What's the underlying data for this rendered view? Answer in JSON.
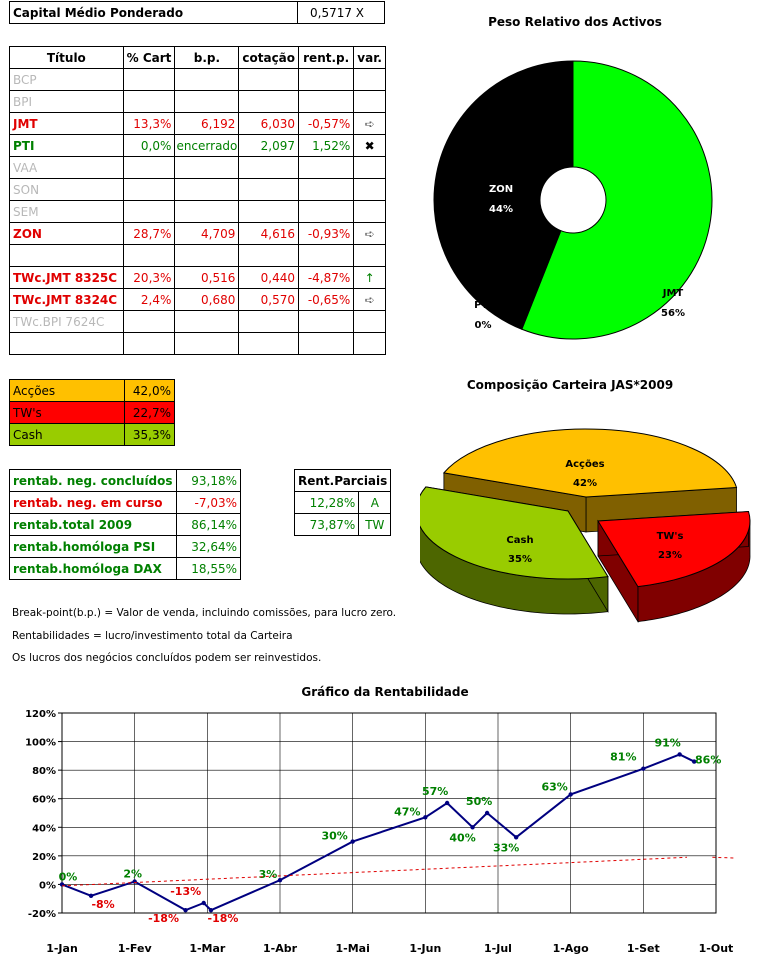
{
  "header": {
    "label": "Capital Médio Ponderado",
    "value": "0,5717 X"
  },
  "portfolio": {
    "columns": [
      "Título",
      "% Cart",
      "b.p.",
      "cotação",
      "rent.p.",
      "var."
    ],
    "rows": [
      {
        "t": "BCP",
        "pct": "",
        "bp": "",
        "cot": "",
        "rent": "",
        "var": "",
        "cls": "gry"
      },
      {
        "t": "BPI",
        "pct": "",
        "bp": "",
        "cot": "",
        "rent": "",
        "var": "",
        "cls": "gry"
      },
      {
        "t": "JMT",
        "pct": "13,3%",
        "bp": "6,192",
        "cot": "6,030",
        "rent": "-0,57%",
        "var": "➪",
        "cls": "red"
      },
      {
        "t": "PTI",
        "pct": "0,0%",
        "bp": "encerrado",
        "cot": "2,097",
        "rent": "1,52%",
        "var": "✖",
        "cls": "grn"
      },
      {
        "t": "VAA",
        "pct": "",
        "bp": "",
        "cot": "",
        "rent": "",
        "var": "",
        "cls": "gry"
      },
      {
        "t": "SON",
        "pct": "",
        "bp": "",
        "cot": "",
        "rent": "",
        "var": "",
        "cls": "gry"
      },
      {
        "t": "SEM",
        "pct": "",
        "bp": "",
        "cot": "",
        "rent": "",
        "var": "",
        "cls": "gry"
      },
      {
        "t": "ZON",
        "pct": "28,7%",
        "bp": "4,709",
        "cot": "4,616",
        "rent": "-0,93%",
        "var": "➪",
        "cls": "red"
      },
      {
        "t": "",
        "pct": "",
        "bp": "",
        "cot": "",
        "rent": "",
        "var": "",
        "cls": ""
      },
      {
        "t": "TWc.JMT 8325C",
        "pct": "20,3%",
        "bp": "0,516",
        "cot": "0,440",
        "rent": "-4,87%",
        "var": "↑",
        "cls": "red"
      },
      {
        "t": "TWc.JMT 8324C",
        "pct": "2,4%",
        "bp": "0,680",
        "cot": "0,570",
        "rent": "-0,65%",
        "var": "➪",
        "cls": "red"
      },
      {
        "t": "TWc.BPI 7624C",
        "pct": "",
        "bp": "",
        "cot": "",
        "rent": "",
        "var": "",
        "cls": "gry"
      },
      {
        "t": "",
        "pct": "",
        "bp": "",
        "cot": "",
        "rent": "",
        "var": "",
        "cls": ""
      }
    ]
  },
  "composition": [
    {
      "label": "Acções",
      "value": "42,0%",
      "color": "#ffc000"
    },
    {
      "label": "TW's",
      "value": "22,7%",
      "color": "#ff0000"
    },
    {
      "label": "Cash",
      "value": "35,3%",
      "color": "#99cc00"
    }
  ],
  "returns": [
    {
      "label": "rentab. neg. concluídos",
      "value": "93,18%",
      "cls": "grn"
    },
    {
      "label": "rentab. neg. em curso",
      "value": "-7,03%",
      "cls": "red"
    },
    {
      "label": "rentab.total 2009",
      "value": "86,14%",
      "cls": "grn"
    },
    {
      "label": "rentab.homóloga PSI",
      "value": "32,64%",
      "cls": "grn"
    },
    {
      "label": "rentab.homóloga DAX",
      "value": "18,55%",
      "cls": "grn"
    }
  ],
  "partials": {
    "title": "Rent.Parciais",
    "rows": [
      {
        "value": "12,28%",
        "code": "A"
      },
      {
        "value": "73,87%",
        "code": "TW"
      }
    ]
  },
  "notes": [
    "Break-point(b.p.) = Valor de venda, incluindo comissões, para lucro zero.",
    "Rentabilidades = lucro/investimento total da Carteira",
    "Os lucros dos negócios concluídos podem ser reinvestidos."
  ],
  "chart_data": [
    {
      "type": "pie",
      "title": "Peso Relativo dos Activos",
      "slices": [
        {
          "label": "JMT",
          "value": 56,
          "text": "56%",
          "color": "#00ff00"
        },
        {
          "label": "ZON",
          "value": 44,
          "text": "44%",
          "color": "#000000"
        },
        {
          "label": "PTI",
          "value": 0,
          "text": "0%",
          "color": "#ffffff"
        }
      ]
    },
    {
      "type": "pie",
      "title": "Composição Carteira JAS*2009",
      "slices": [
        {
          "label": "Acções",
          "value": 42,
          "text": "42%",
          "color": "#ffc000"
        },
        {
          "label": "TW's",
          "value": 23,
          "text": "23%",
          "color": "#ff0000"
        },
        {
          "label": "Cash",
          "value": 35,
          "text": "35%",
          "color": "#99cc00"
        }
      ]
    },
    {
      "type": "line",
      "title": "Gráfico da Rentabilidade",
      "categories": [
        "1-Jan",
        "1-Fev",
        "1-Mar",
        "1-Abr",
        "1-Mai",
        "1-Jun",
        "1-Jul",
        "1-Ago",
        "1-Set",
        "1-Out"
      ],
      "ylim": [
        -20,
        120
      ],
      "yticks": [
        "-20%",
        "0%",
        "20%",
        "40%",
        "60%",
        "80%",
        "100%",
        "120%"
      ],
      "grid": true,
      "series": [
        {
          "values": [
            [
              0,
              0
            ],
            [
              0.4,
              -8
            ],
            [
              1,
              2
            ],
            [
              1.7,
              -18
            ],
            [
              1.95,
              -13
            ],
            [
              2.05,
              -18
            ],
            [
              3,
              3
            ],
            [
              4,
              30
            ],
            [
              5,
              47
            ],
            [
              5.3,
              57
            ],
            [
              5.65,
              40
            ],
            [
              5.85,
              50
            ],
            [
              6.25,
              33
            ],
            [
              7,
              63
            ],
            [
              8,
              81
            ],
            [
              8.5,
              91
            ],
            [
              8.7,
              86
            ]
          ],
          "labels": [
            {
              "i": 0,
              "text": "0%",
              "color": "#008000"
            },
            {
              "i": 1,
              "text": "-8%",
              "color": "#e00000"
            },
            {
              "i": 2,
              "text": "2%",
              "color": "#008000"
            },
            {
              "i": 3,
              "text": "-18%",
              "color": "#e00000"
            },
            {
              "i": 4,
              "text": "-13%",
              "color": "#e00000"
            },
            {
              "i": 5,
              "text": "-18%",
              "color": "#e00000"
            },
            {
              "i": 6,
              "text": "3%",
              "color": "#008000"
            },
            {
              "i": 7,
              "text": "30%",
              "color": "#008000"
            },
            {
              "i": 8,
              "text": "47%",
              "color": "#008000"
            },
            {
              "i": 9,
              "text": "57%",
              "color": "#008000"
            },
            {
              "i": 10,
              "text": "40%",
              "color": "#008000"
            },
            {
              "i": 11,
              "text": "50%",
              "color": "#008000"
            },
            {
              "i": 12,
              "text": "33%",
              "color": "#008000"
            },
            {
              "i": 13,
              "text": "63%",
              "color": "#008000"
            },
            {
              "i": 14,
              "text": "81%",
              "color": "#008000"
            },
            {
              "i": 15,
              "text": "91%",
              "color": "#008000"
            },
            {
              "i": 16,
              "text": "86%",
              "color": "#008000"
            }
          ],
          "color": "#000080"
        },
        {
          "values": [
            [
              0,
              -1
            ],
            [
              8.6,
              19
            ]
          ],
          "color": "#e00000",
          "dashed": true
        },
        {
          "values": [
            [
              8.95,
              19
            ],
            [
              9.25,
              18.5
            ]
          ],
          "color": "#e00000",
          "dashed": true
        }
      ]
    }
  ]
}
